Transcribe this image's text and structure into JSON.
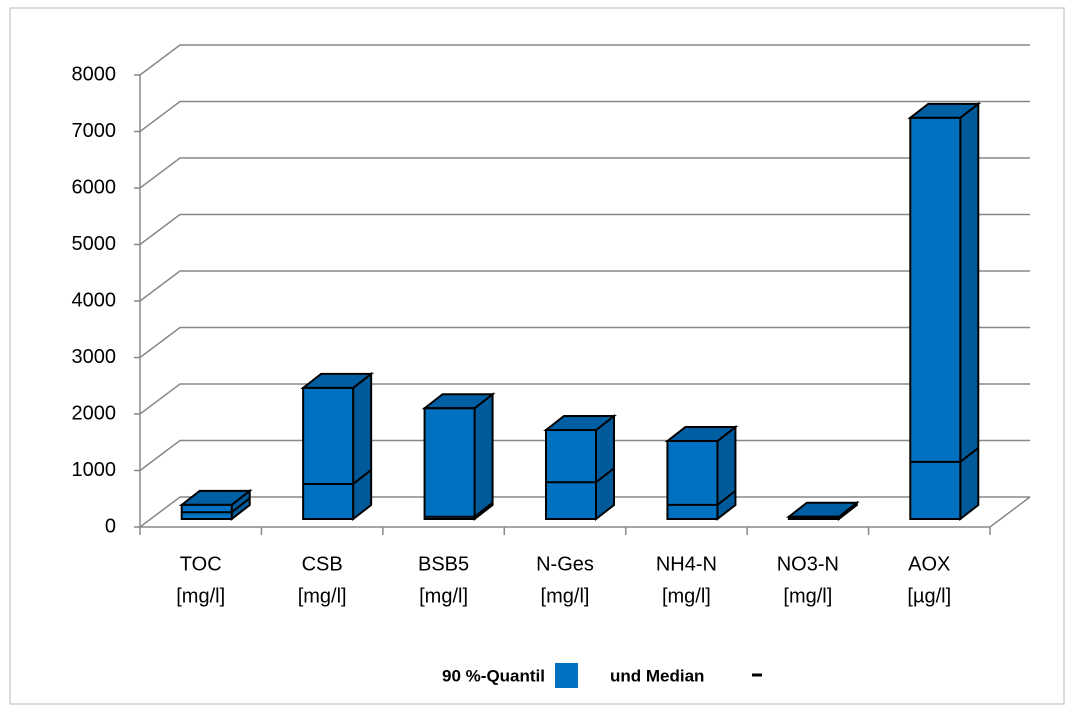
{
  "chart_data": {
    "type": "bar3d",
    "categories": [
      [
        "TOC",
        "[mg/l]"
      ],
      [
        "CSB",
        "[mg/l]"
      ],
      [
        "BSB5",
        "[mg/l]"
      ],
      [
        "N-Ges",
        "[mg/l]"
      ],
      [
        "NH4-N",
        "[mg/l]"
      ],
      [
        "NO3-N",
        "[mg/l]"
      ],
      [
        "AOX",
        "[µg/l]"
      ]
    ],
    "series": [
      {
        "name": "90 %-Quantil",
        "color": "#0070c0",
        "values": [
          250,
          2320,
          1960,
          1575,
          1380,
          40,
          7100
        ]
      },
      {
        "name": "und Median",
        "color": "#000000",
        "values": [
          120,
          620,
          40,
          650,
          250,
          20,
          1010
        ]
      }
    ],
    "ylim": [
      0,
      8000
    ],
    "yticks": [
      0,
      1000,
      2000,
      3000,
      4000,
      5000,
      6000,
      7000,
      8000
    ],
    "grid": true
  }
}
